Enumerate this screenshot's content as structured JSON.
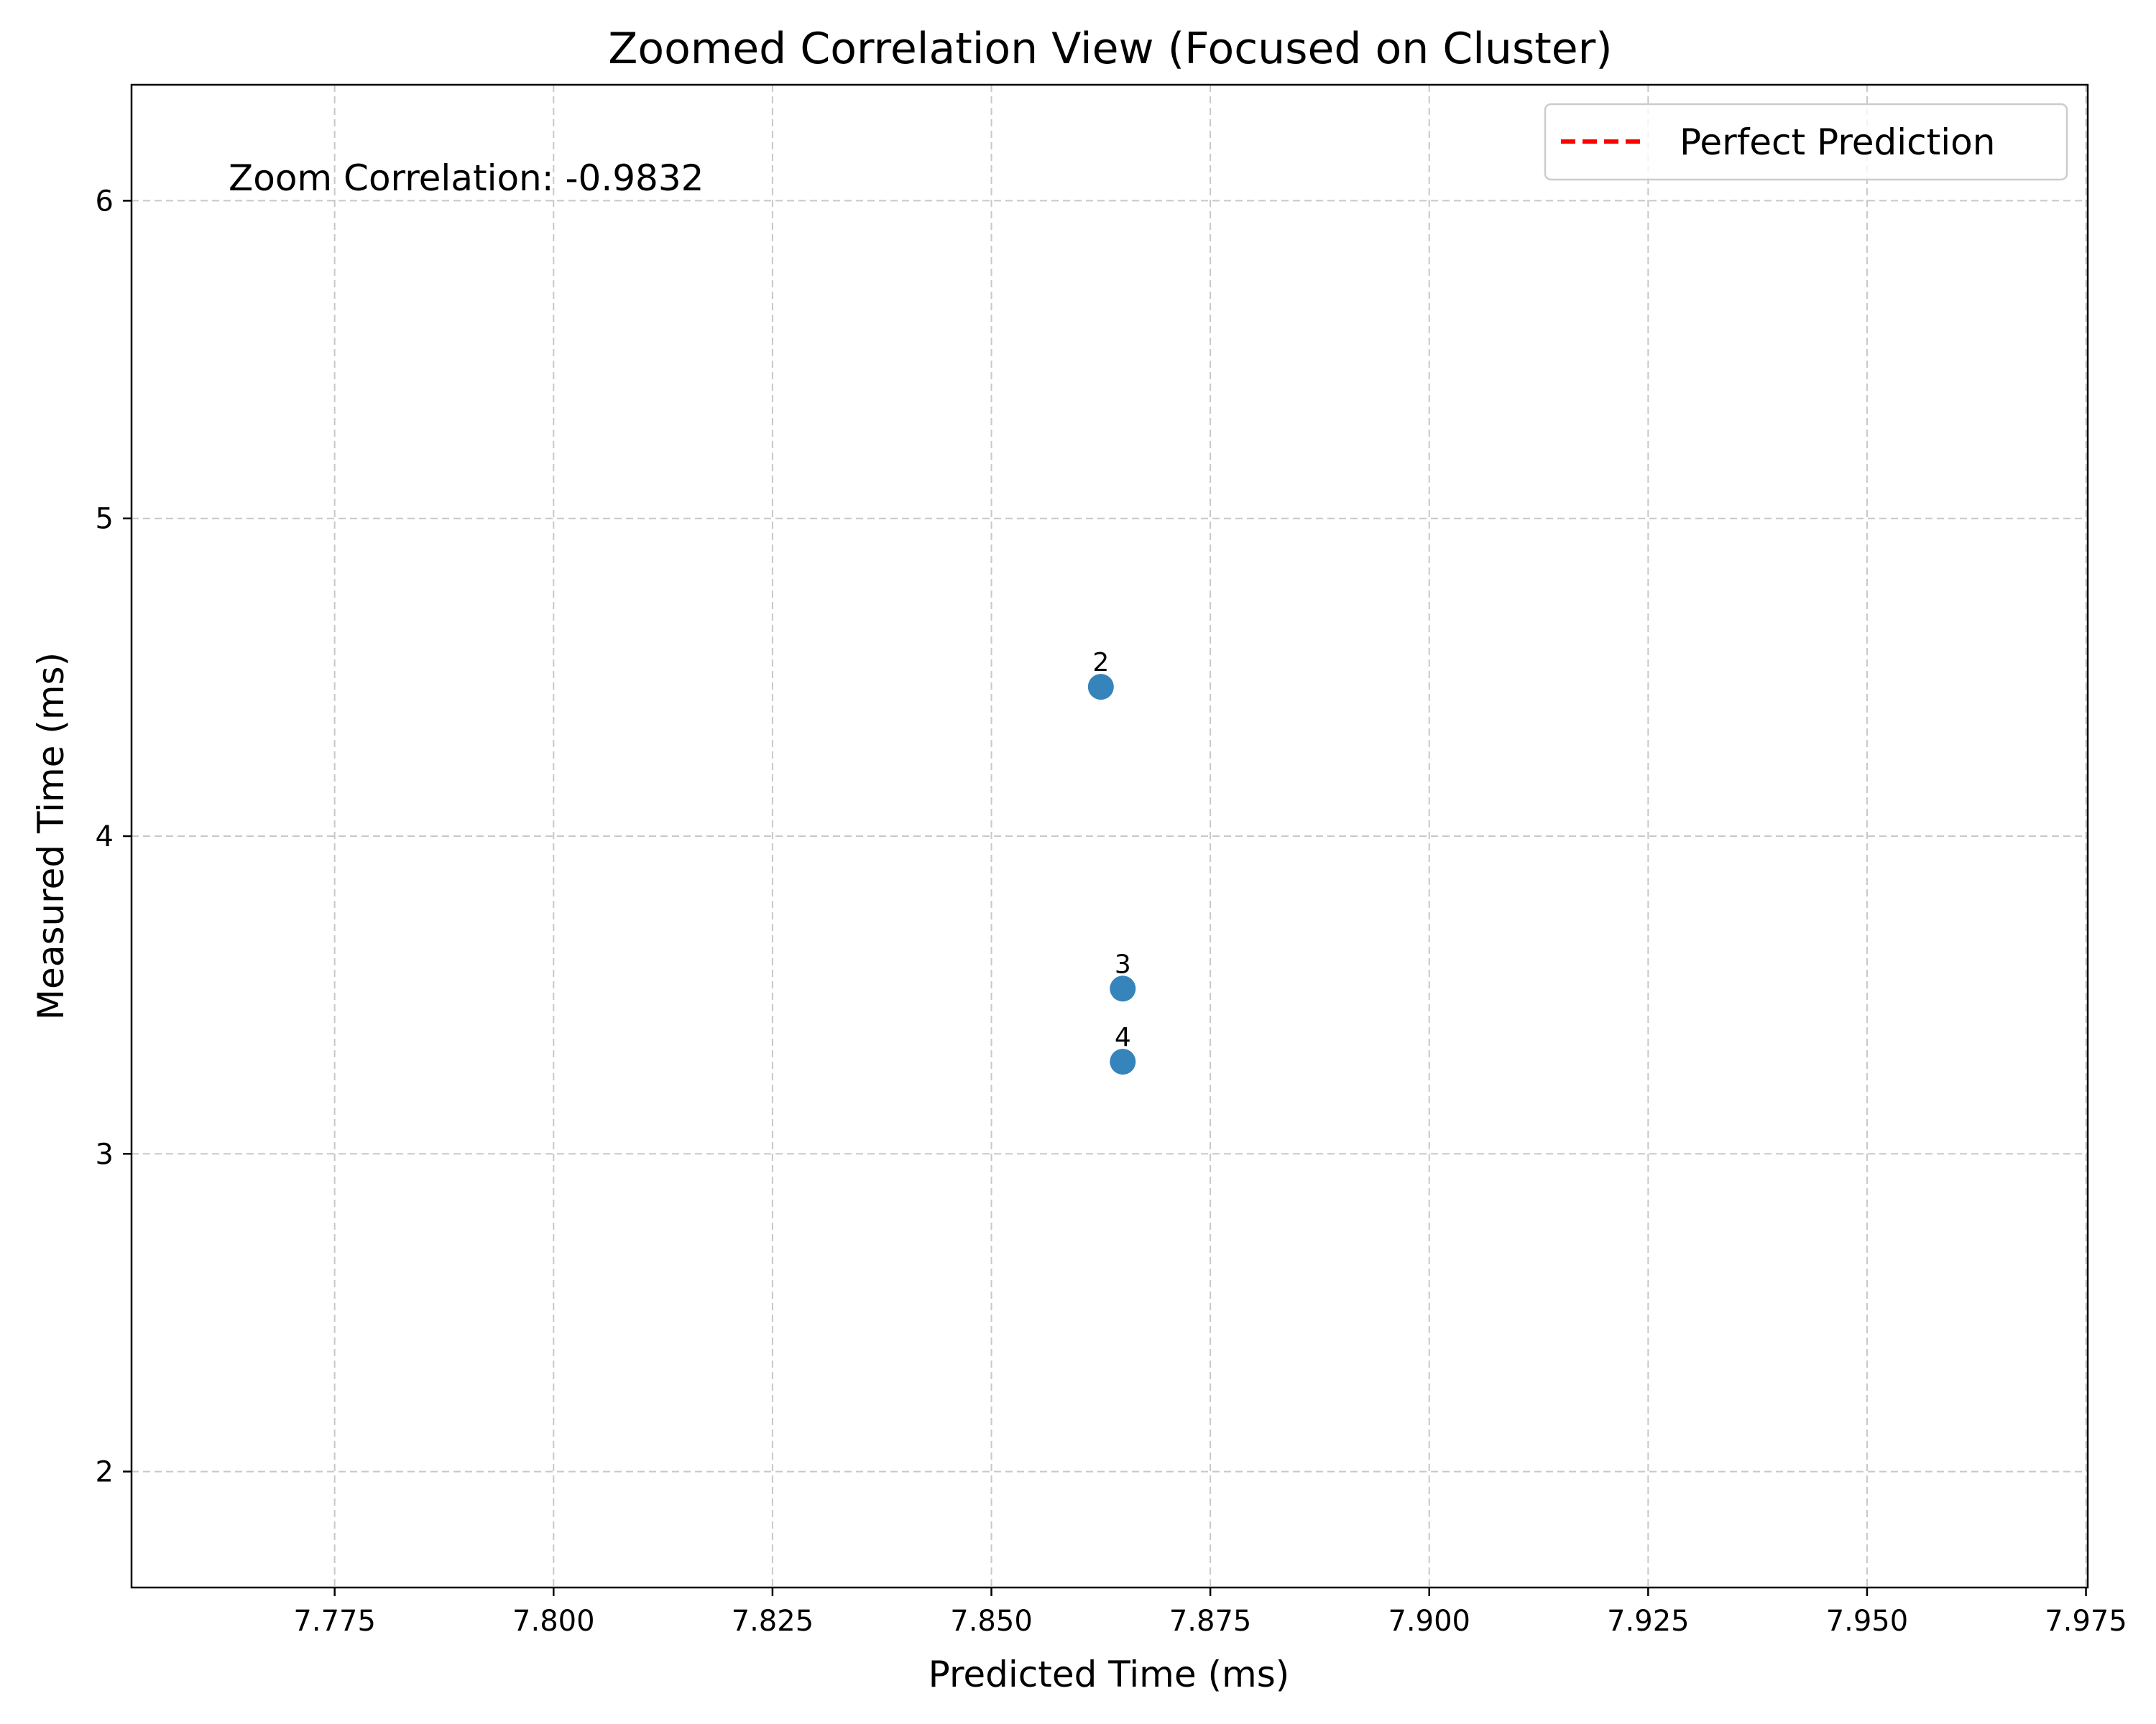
{
  "chart_data": {
    "type": "scatter",
    "title": "Zoomed Correlation View (Focused on Cluster)",
    "xlabel": "Predicted Time (ms)",
    "ylabel": "Measured Time (ms)",
    "xlim": [
      7.7518,
      7.9752
    ],
    "ylim": [
      1.635,
      6.365
    ],
    "x_ticks": [
      7.775,
      7.8,
      7.825,
      7.85,
      7.875,
      7.9,
      7.925,
      7.95,
      7.975
    ],
    "x_tick_labels": [
      "7.775",
      "7.800",
      "7.825",
      "7.850",
      "7.875",
      "7.900",
      "7.925",
      "7.950",
      "7.975"
    ],
    "y_ticks": [
      2,
      3,
      4,
      5,
      6
    ],
    "y_tick_labels": [
      "2",
      "3",
      "4",
      "5",
      "6"
    ],
    "grid": true,
    "legend": {
      "position": "top-right",
      "entries": [
        {
          "label": "Perfect Prediction",
          "color": "#ff0000",
          "style": "dashed"
        }
      ]
    },
    "annotation": "Zoom Correlation: -0.9832",
    "points_color": "#1f77b4",
    "points": [
      {
        "label": "2",
        "x": 7.8625,
        "y": 4.47
      },
      {
        "label": "3",
        "x": 7.865,
        "y": 3.52
      },
      {
        "label": "4",
        "x": 7.865,
        "y": 3.29
      }
    ]
  }
}
